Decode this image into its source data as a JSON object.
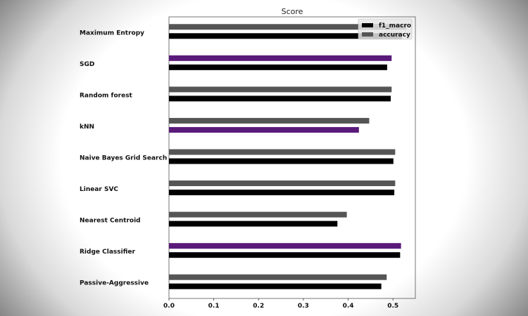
{
  "chart_data": {
    "type": "bar",
    "orientation": "horizontal",
    "title": "Score",
    "xlabel": "",
    "ylabel": "",
    "xlim": [
      0,
      0.55
    ],
    "xticks": [
      "0.0",
      "0.1",
      "0.2",
      "0.3",
      "0.4",
      "0.5"
    ],
    "legend_position": "top-right",
    "categories": [
      "Maximum Entropy",
      "SGD",
      "Random forest",
      "kNN",
      "Naive Bayes Grid Search",
      "Linear SVC",
      "Nearest Centroid",
      "Ridge Classifier",
      "Passive-Aggressive"
    ],
    "series": [
      {
        "name": "f1_macro",
        "color": "#000000",
        "values": [
          0.52,
          0.487,
          0.495,
          0.424,
          0.501,
          0.503,
          0.376,
          0.516,
          0.474
        ]
      },
      {
        "name": "accuracy",
        "color": "#555555",
        "values": [
          0.53,
          0.497,
          0.497,
          0.447,
          0.505,
          0.505,
          0.397,
          0.518,
          0.486
        ]
      }
    ],
    "highlight_color": "#5a1a7a",
    "highlighted": [
      {
        "category": "SGD",
        "series": "accuracy"
      },
      {
        "category": "kNN",
        "series": "f1_macro"
      },
      {
        "category": "Ridge Classifier",
        "series": "accuracy"
      }
    ]
  }
}
